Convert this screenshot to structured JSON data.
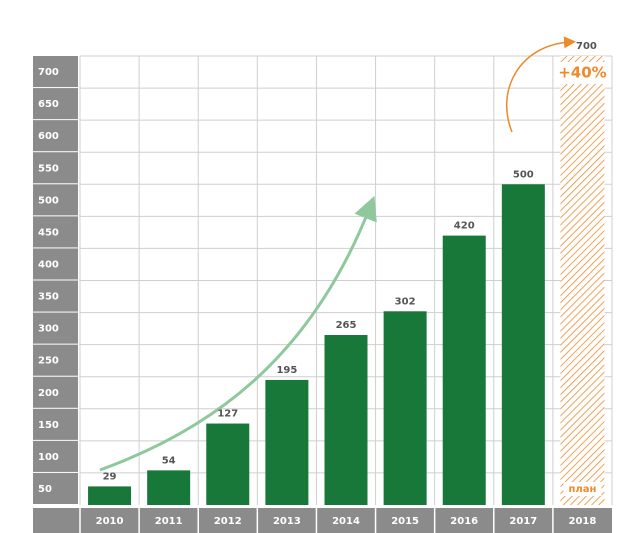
{
  "chart_data": {
    "type": "bar",
    "categories": [
      "2010",
      "2011",
      "2012",
      "2013",
      "2014",
      "2015",
      "2016",
      "2017",
      "2018"
    ],
    "values": [
      29,
      54,
      127,
      195,
      265,
      302,
      420,
      500,
      null
    ],
    "color": "#17783a",
    "ylim": [
      0,
      700
    ],
    "yticks": [
      50,
      100,
      150,
      200,
      250,
      300,
      350,
      400,
      450,
      500,
      550,
      600,
      650,
      700
    ],
    "grid": true,
    "plan": {
      "value": 700,
      "change": "+40%",
      "label": "план",
      "color": "#ef8a2a"
    }
  }
}
